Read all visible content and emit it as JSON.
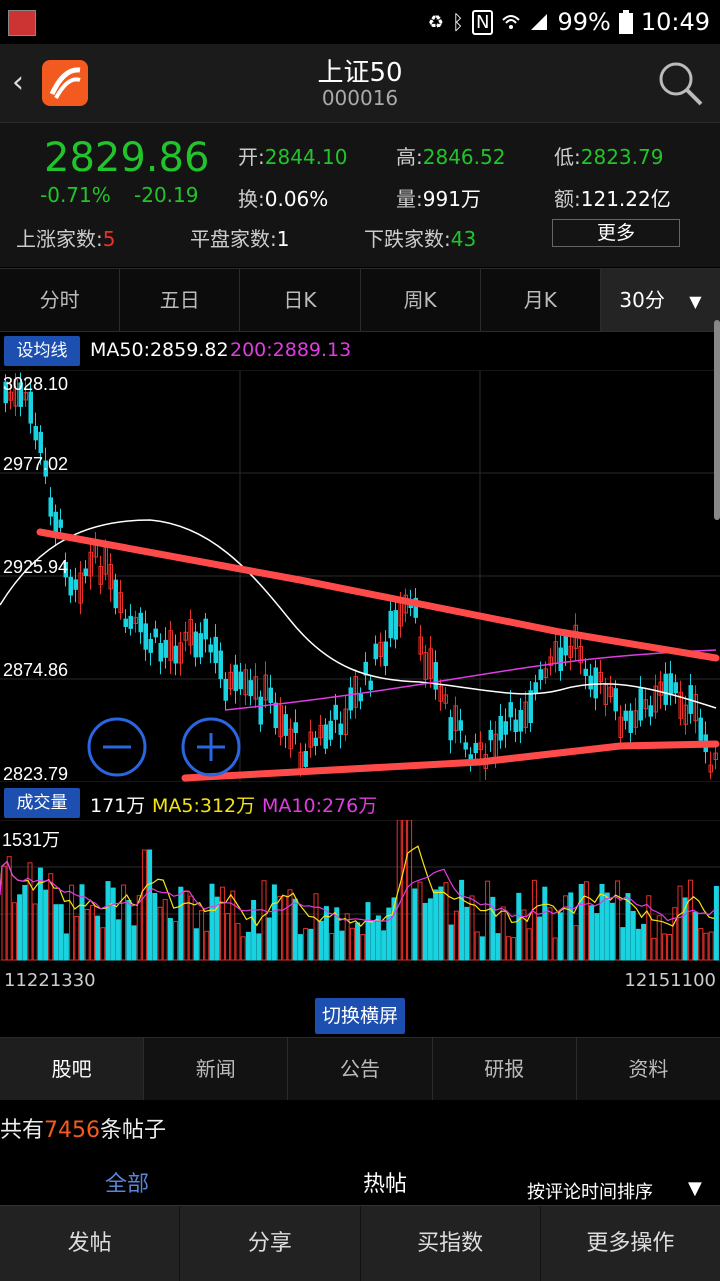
{
  "status_bar": {
    "battery": "99%",
    "time": "10:49"
  },
  "header": {
    "title": "上证50",
    "code": "000016"
  },
  "quote": {
    "price": "2829.86",
    "change_pct": "-0.71%",
    "change_abs": "-20.19",
    "open_label": "开:",
    "open": "2844.10",
    "high_label": "高:",
    "high": "2846.52",
    "low_label": "低:",
    "low": "2823.79",
    "turnover_label": "换:",
    "turnover": "0.06%",
    "volume_label": "量:",
    "volume": "991万",
    "amount_label": "额:",
    "amount": "121.22亿",
    "rising_label": "上涨家数:",
    "rising": "5",
    "flat_label": "平盘家数:",
    "flat": "1",
    "falling_label": "下跌家数:",
    "falling": "43",
    "more": "更多"
  },
  "period_tabs": [
    "分时",
    "五日",
    "日K",
    "周K",
    "月K",
    "30分"
  ],
  "period_dropdown_icon": "triangle-down-icon",
  "ma_bar": {
    "button": "设均线",
    "ma50": "MA50:2859.82",
    "ma200": "200:2889.13"
  },
  "kline_axis": {
    "labels": [
      "3028.10",
      "2977.02",
      "2925.94",
      "2874.86",
      "2823.79"
    ]
  },
  "zoom": {
    "minus_icon": "zoom-out-icon",
    "plus_icon": "zoom-in-icon"
  },
  "volume_bar": {
    "button": "成交量",
    "current": "171万",
    "ma5": "MA5:312万",
    "ma10": "MA10:276万",
    "max_label": "1531万"
  },
  "dates": {
    "start": "11221330",
    "end": "12151100"
  },
  "landscape_button": "切换横屏",
  "news_tabs": [
    "股吧",
    "新闻",
    "公告",
    "研报",
    "资料"
  ],
  "posts": {
    "prefix": "共有",
    "count": "7456",
    "suffix": "条帖子"
  },
  "filters": {
    "all": "全部",
    "hot": "热帖",
    "sort": "按评论时间排序"
  },
  "bottom_bar": [
    "发帖",
    "分享",
    "买指数",
    "更多操作"
  ],
  "colors": {
    "up": "#e9302a",
    "down": "#21c42a",
    "candle_down": "#19d3e0",
    "accent": "#1c4fb0",
    "brand": "#f35a1f"
  }
}
